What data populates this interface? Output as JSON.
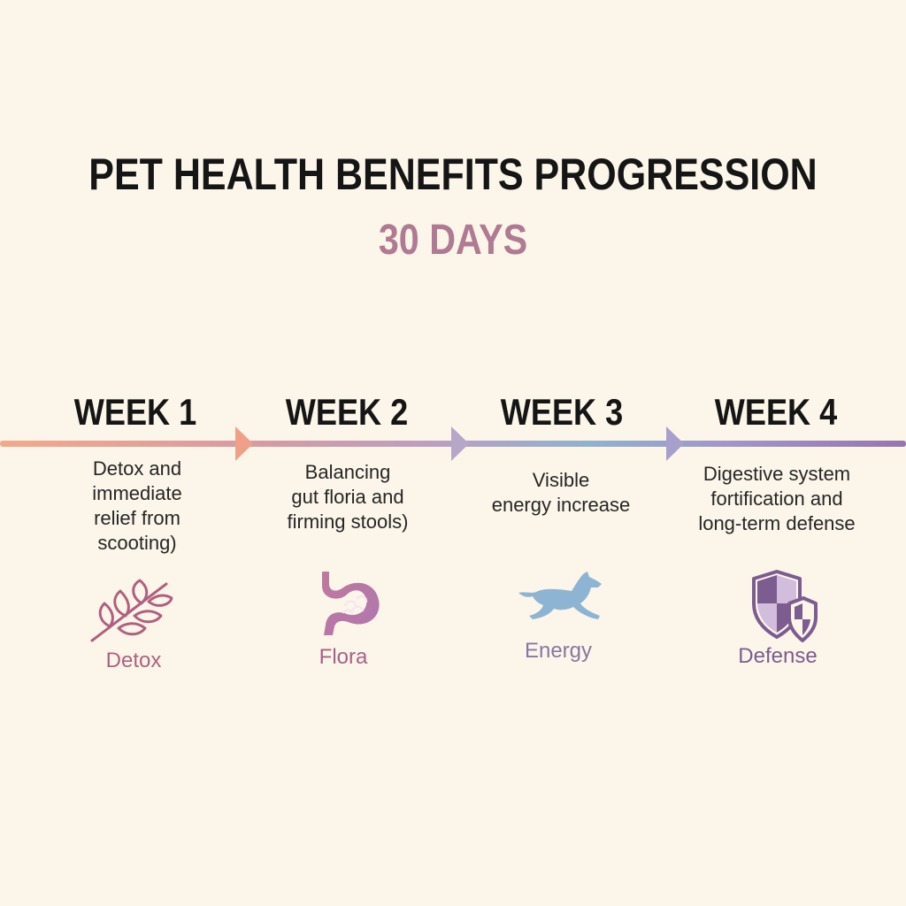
{
  "header": {
    "title": "PET HEALTH BENEFITS PROGRESSION",
    "subtitle": "30 DAYS"
  },
  "colors": {
    "background": "#fcf6ea",
    "title": "#151515",
    "subtitle": "#b07a92",
    "timeline_start": "#f0a585",
    "timeline_mid1": "#c49ab8",
    "timeline_mid2": "#8ab0d0",
    "timeline_end": "#9a78b0"
  },
  "weeks": [
    {
      "title": "WEEK 1",
      "description": [
        "Detox and",
        "immediate",
        "relief from",
        "scooting)"
      ],
      "icon": "leaf-branch-icon",
      "icon_label": "Detox",
      "label_color": "#b0607e"
    },
    {
      "title": "WEEK 2",
      "description": [
        "Balancing",
        "gut floria and",
        "firming stools)"
      ],
      "icon": "stomach-icon",
      "icon_label": "Flora",
      "label_color": "#a8608a"
    },
    {
      "title": "WEEK 3",
      "description": [
        "Visible",
        "energy increase"
      ],
      "icon": "running-dog-icon",
      "icon_label": "Energy",
      "label_color": "#8678a0"
    },
    {
      "title": "WEEK 4",
      "description": [
        "Digestive system",
        "fortification and",
        "long-term defense"
      ],
      "icon": "shield-icon",
      "icon_label": "Defense",
      "label_color": "#7d5c90"
    }
  ]
}
